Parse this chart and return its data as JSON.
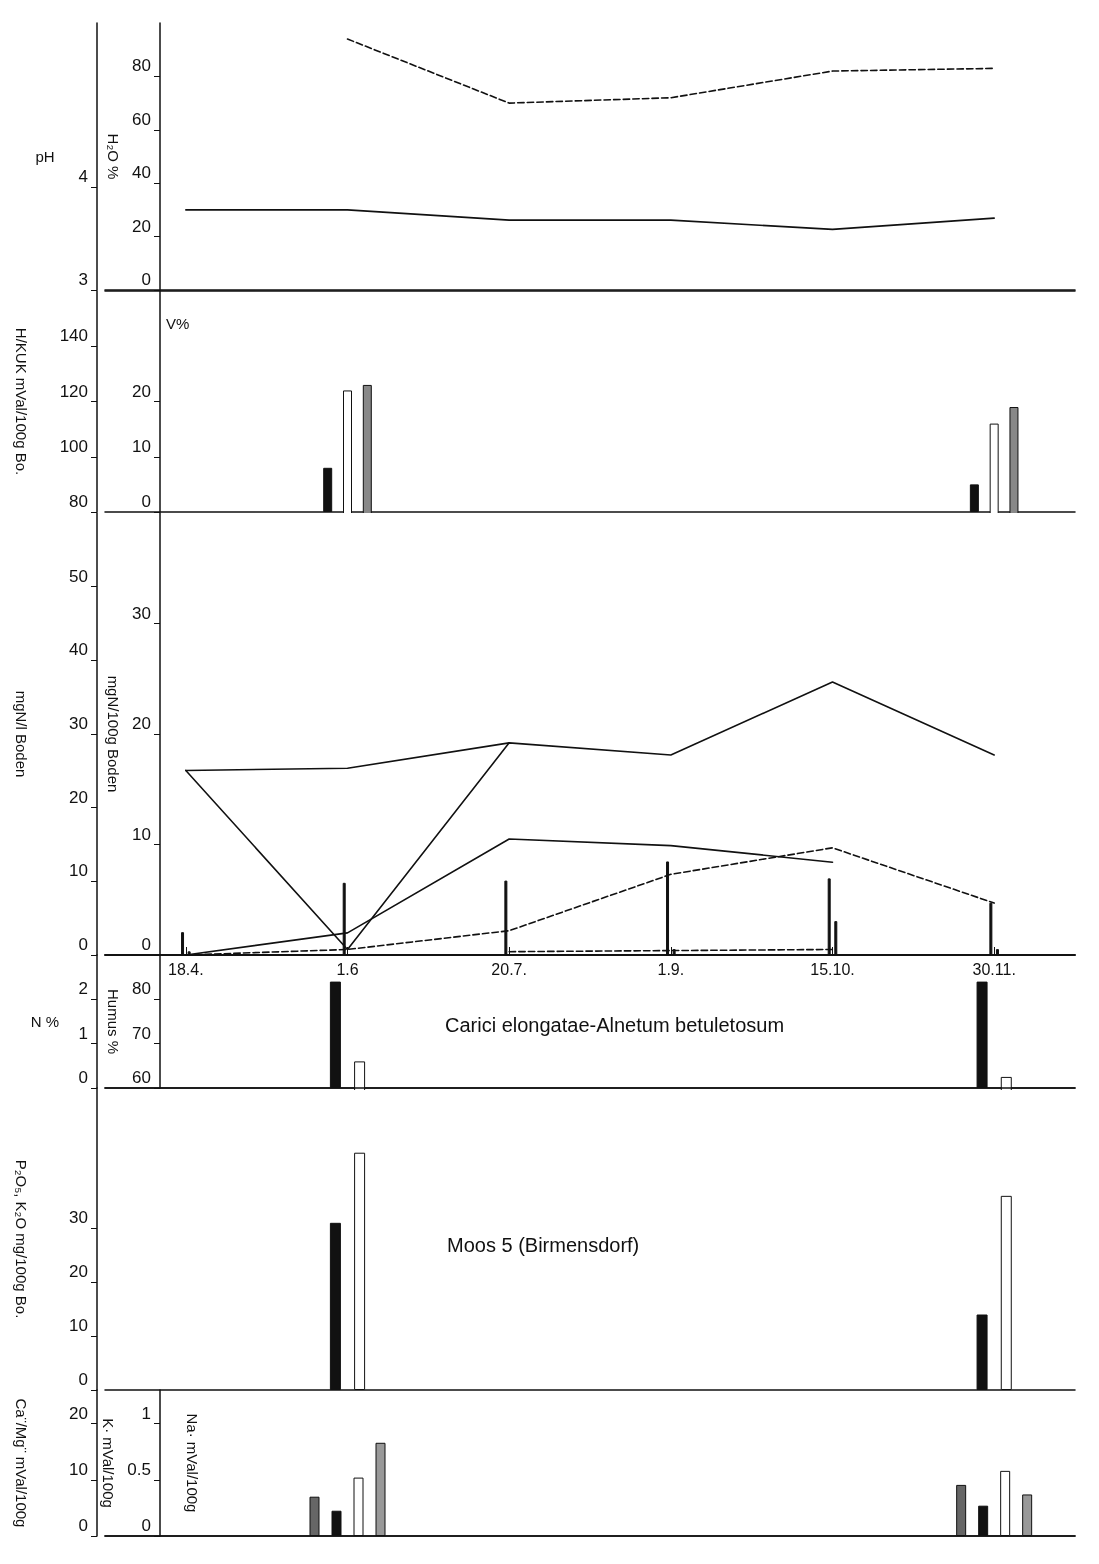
{
  "chart_data": [
    {
      "type": "line",
      "categories": [
        "18.4.",
        "1.6",
        "20.7.",
        "1.9.",
        "15.10.",
        "30.11."
      ],
      "ylabel": "pH",
      "y2label": "H₂O %",
      "ylim": [
        3,
        5.6
      ],
      "yticks": [
        3,
        4
      ],
      "y2lim": [
        0,
        100
      ],
      "y2ticks": [
        0,
        20,
        40,
        60,
        80
      ],
      "tick_labels": "y",
      "marker": "none",
      "series": [
        {
          "color": "#111111",
          "line_style": "solid",
          "values": [
            3.78,
            3.78,
            3.68,
            3.68,
            3.59,
            3.7
          ]
        },
        {
          "color": "#111111",
          "line_style": "dashed",
          "axis": "y2",
          "values": [
            null,
            94,
            70,
            72,
            82,
            83
          ]
        }
      ]
    },
    {
      "type": "bar",
      "categories": [
        "18.4.",
        "1.6",
        "20.7.",
        "1.9.",
        "15.10.",
        "30.11."
      ],
      "ylabel": "H/KUK mVal/100g Bo.",
      "y2label": "V%",
      "ylim": [
        80,
        160
      ],
      "yticks": [
        80,
        100,
        120,
        140
      ],
      "y2lim": [
        0,
        40
      ],
      "y2ticks": [
        0,
        10,
        20
      ],
      "tick_labels": "y",
      "series": [
        {
          "color": "#111111",
          "axis": "y2",
          "values": [
            null,
            8,
            null,
            null,
            null,
            5
          ]
        },
        {
          "color": "#ffffff",
          "values": [
            null,
            124,
            null,
            null,
            null,
            112
          ]
        },
        {
          "color": "#888888",
          "values": [
            null,
            126,
            null,
            null,
            null,
            118
          ]
        }
      ]
    },
    {
      "type": "line",
      "categories": [
        "18.4.",
        "1.6",
        "20.7.",
        "1.9.",
        "15.10.",
        "30.11."
      ],
      "ylabel": "mgN/l Boden",
      "y2label": "mgN/100g Boden",
      "ylim": [
        0,
        60
      ],
      "yticks": [
        0,
        10,
        20,
        30,
        40,
        50
      ],
      "y2lim": [
        0,
        40
      ],
      "y2ticks": [
        0,
        10,
        20,
        30
      ],
      "marker": "none",
      "series": [
        {
          "color": "#111111",
          "axis": "y2",
          "line_style": "solid",
          "values": [
            16.7,
            0.5,
            19.2,
            18.1,
            24.7,
            18.1
          ]
        },
        {
          "color": "#111111",
          "axis": "y2",
          "line_style": "solid",
          "values": [
            16.7,
            16.9,
            19.2,
            null,
            null,
            null
          ]
        },
        {
          "color": "#111111",
          "axis": "y2",
          "line_style": "solid",
          "values": [
            0,
            2,
            10.5,
            9.9,
            8.4,
            null
          ]
        },
        {
          "color": "#111111",
          "axis": "y2",
          "line_style": "dashed",
          "values": [
            0,
            0.5,
            2.2,
            7.3,
            9.7,
            4.7
          ]
        },
        {
          "color": "#111111",
          "axis": "y2",
          "line_style": "dashed",
          "values": [
            null,
            null,
            0.3,
            0.4,
            0.5,
            null
          ]
        },
        {
          "type": "bar",
          "color": "#111111",
          "values": [
            3.1,
            9.8,
            10.1,
            12.7,
            10.4,
            7.1
          ]
        },
        {
          "type": "bar",
          "color": "#111111",
          "values": [
            0.5,
            null,
            null,
            0.8,
            4.6,
            0.8
          ]
        }
      ]
    },
    {
      "type": "bar",
      "categories": [
        "18.4.",
        "1.6",
        "20.7.",
        "1.9.",
        "15.10.",
        "30.11."
      ],
      "ylabel": "N %",
      "y2label": "Humus %",
      "ylim": [
        0,
        3
      ],
      "yticks": [
        0,
        1,
        2
      ],
      "y2lim": [
        60,
        90
      ],
      "y2ticks": [
        60,
        70,
        80
      ],
      "tick_labels": "y",
      "annotations": [
        "Carici elongatae-Alnetum betuletosum"
      ],
      "series": [
        {
          "color": "#111111",
          "values": [
            null,
            2.4,
            null,
            null,
            null,
            2.4
          ]
        },
        {
          "color": "#ffffff",
          "axis": "y2",
          "values": [
            null,
            66,
            null,
            null,
            null,
            62.5
          ]
        }
      ]
    },
    {
      "type": "bar",
      "categories": [
        "18.4.",
        "1.6",
        "20.7.",
        "1.9.",
        "15.10.",
        "30.11."
      ],
      "ylabel": "P₂O₅, K₂O mg/100g Bo.",
      "ylim": [
        0,
        56
      ],
      "yticks": [
        0,
        10,
        20,
        30
      ],
      "tick_labels": "y",
      "annotations": [
        "Moos 5 (Birmensdorf)"
      ],
      "series": [
        {
          "color": "#111111",
          "values": [
            null,
            31,
            null,
            null,
            null,
            14
          ]
        },
        {
          "color": "#ffffff",
          "values": [
            null,
            44,
            null,
            null,
            null,
            36
          ]
        }
      ]
    },
    {
      "type": "bar",
      "categories": [
        "18.4.",
        "1.6",
        "20.7.",
        "1.9.",
        "15.10.",
        "30.11."
      ],
      "ylabel": "Ca¨/Mg¨ mVal/100g",
      "y2label": "K· mVal/100g",
      "y3label": "Na· mVal/100g",
      "ylim": [
        0,
        26
      ],
      "yticks": [
        0,
        10,
        20
      ],
      "y2lim": [
        0,
        1.3
      ],
      "y2ticks": [
        0,
        0.5,
        1
      ],
      "tick_labels": "y",
      "series": [
        {
          "color": "#666666",
          "values": [
            null,
            7,
            null,
            null,
            null,
            9.1
          ]
        },
        {
          "color": "#111111",
          "values": [
            null,
            4.5,
            null,
            null,
            null,
            5.4
          ]
        },
        {
          "color": "#ffffff",
          "axis": "y2",
          "values": [
            null,
            0.52,
            null,
            null,
            null,
            0.58
          ]
        },
        {
          "color": "#999999",
          "axis": "y2",
          "values": [
            null,
            0.83,
            null,
            null,
            null,
            0.37
          ]
        }
      ]
    }
  ]
}
